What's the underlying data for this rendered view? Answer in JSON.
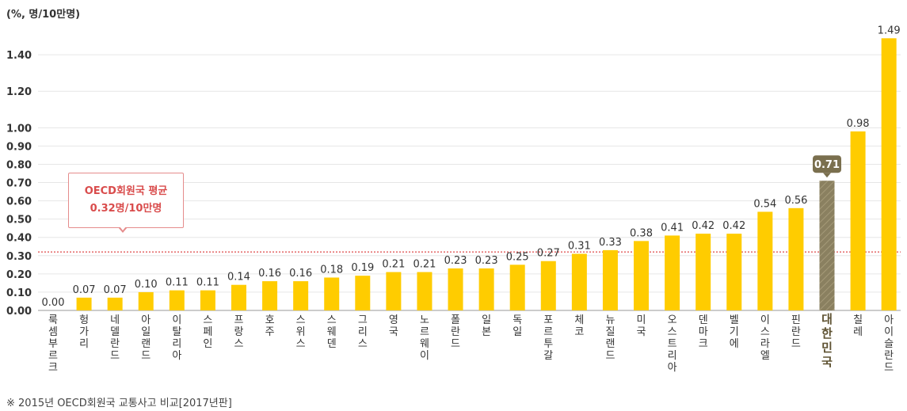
{
  "chart_data": {
    "type": "bar",
    "unit_label": "(%, 명/10만명)",
    "ylim": [
      0,
      1.5
    ],
    "yticks": [
      "0.00",
      "0.10",
      "0.20",
      "0.30",
      "0.40",
      "0.50",
      "0.60",
      "0.70",
      "0.80",
      "0.90",
      "1.00",
      "1.20",
      "1.40"
    ],
    "categories": [
      "룩셈부르크",
      "헝가리",
      "네델란드",
      "아일랜드",
      "이탈리아",
      "스페인",
      "프랑스",
      "호주",
      "스위스",
      "스웨덴",
      "그리스",
      "영국",
      "노르웨이",
      "폴란드",
      "일본",
      "독일",
      "포르투갈",
      "체코",
      "뉴질랜드",
      "미국",
      "오스트리아",
      "덴마크",
      "벨기에",
      "이스라엘",
      "핀란드",
      "대한민국",
      "칠레",
      "아이슬란드"
    ],
    "values": [
      0.0,
      0.07,
      0.07,
      0.1,
      0.11,
      0.11,
      0.14,
      0.16,
      0.16,
      0.18,
      0.19,
      0.21,
      0.21,
      0.23,
      0.23,
      0.25,
      0.27,
      0.31,
      0.33,
      0.38,
      0.41,
      0.42,
      0.42,
      0.54,
      0.56,
      0.71,
      0.98,
      1.49
    ],
    "value_labels": [
      "0.00",
      "0.07",
      "0.07",
      "0.10",
      "0.11",
      "0.11",
      "0.14",
      "0.16",
      "0.16",
      "0.18",
      "0.19",
      "0.21",
      "0.21",
      "0.23",
      "0.23",
      "0.25",
      "0.27",
      "0.31",
      "0.33",
      "0.38",
      "0.41",
      "0.42",
      "0.42",
      "0.54",
      "0.56",
      "0.71",
      "0.98",
      "1.49"
    ],
    "highlight_category": "대한민국",
    "reference_line": {
      "value": 0.32,
      "label_line1": "OECD회원국 평균",
      "label_line2": "0.32명/10만명"
    },
    "grid": true,
    "colors": {
      "bar": "#ffcc00",
      "highlight": "#8a8060",
      "reference": "#e05a5a",
      "callout_border": "#e58c8c"
    }
  },
  "footnote": "※ 2015년 OECD회원국 교통사고 비교[2017년판]"
}
